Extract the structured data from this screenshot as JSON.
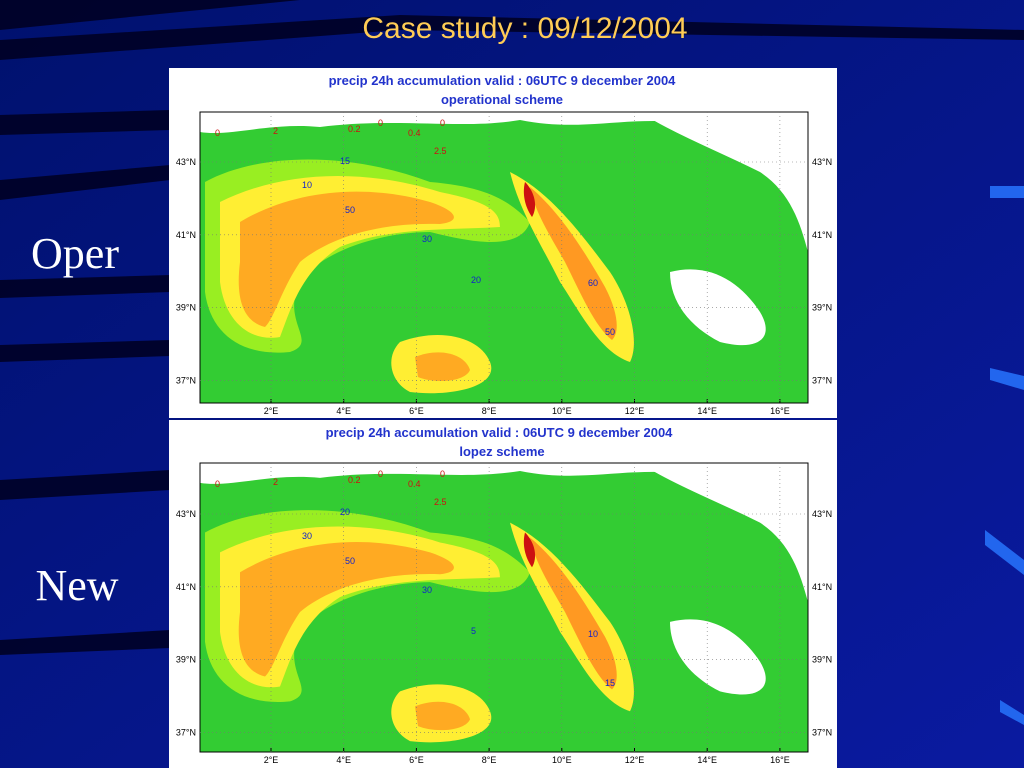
{
  "title": "Case study : 09/12/2004",
  "panels": [
    {
      "label": "Oper",
      "map": {
        "title": "precip 24h accumulation valid : 06UTC 9 december 2004",
        "subtitle": "operational scheme",
        "x_ticks": [
          "2°E",
          "4°E",
          "6°E",
          "8°E",
          "10°E",
          "12°E",
          "14°E",
          "16°E"
        ],
        "y_ticks": [
          "43°N",
          "41°N",
          "39°N",
          "37°N"
        ],
        "contour_labels": [
          "0",
          "2",
          "0.2",
          "0",
          "0.4",
          "0",
          "2.5",
          "15",
          "10",
          "50",
          "30",
          "60",
          "50",
          "20"
        ]
      }
    },
    {
      "label": "New",
      "map": {
        "title": "precip 24h accumulation valid : 06UTC 9 december 2004",
        "subtitle": "lopez scheme",
        "x_ticks": [
          "2°E",
          "4°E",
          "6°E",
          "8°E",
          "10°E",
          "12°E",
          "14°E",
          "16°E"
        ],
        "y_ticks": [
          "43°N",
          "41°N",
          "39°N",
          "37°N"
        ],
        "contour_labels": [
          "0",
          "2",
          "0.2",
          "0",
          "0.4",
          "0",
          "2.5",
          "20",
          "30",
          "50",
          "30",
          "10",
          "15",
          "5"
        ]
      }
    }
  ]
}
